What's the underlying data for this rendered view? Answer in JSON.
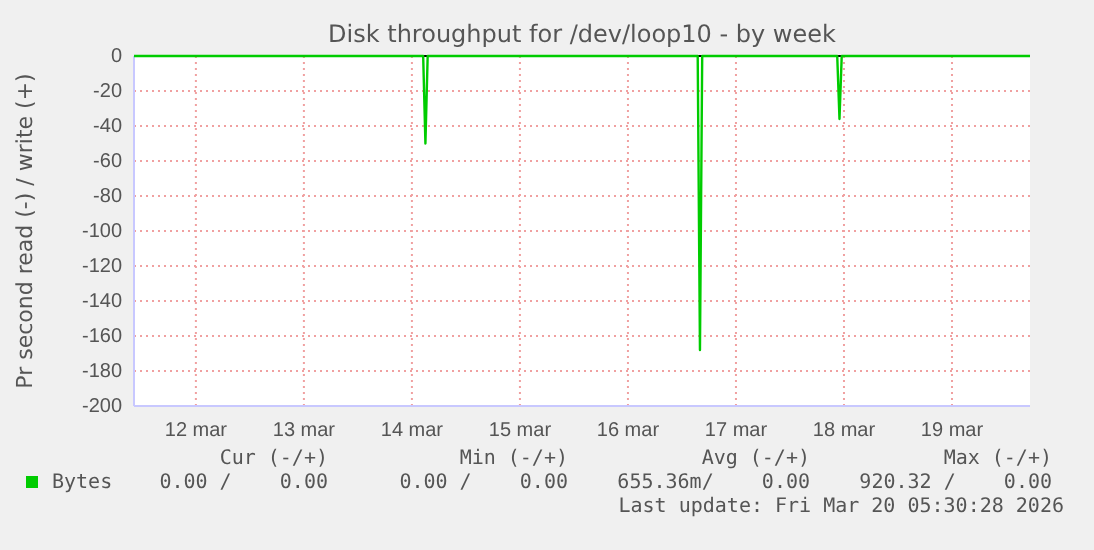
{
  "chart_data": {
    "type": "line",
    "title": "Disk throughput for /dev/loop10 - by week",
    "ylabel": "Pr second read (-) / write (+)",
    "x": [
      "2026-03-11T22:15",
      "2026-03-14T14:30",
      "2026-03-14T15:00",
      "2026-03-14T15:30",
      "2026-03-17T03:30",
      "2026-03-17T04:00",
      "2026-03-17T04:30",
      "2026-03-18T10:30",
      "2026-03-18T11:00",
      "2026-03-18T11:30",
      "2026-03-20T05:20"
    ],
    "series": [
      {
        "name": "Bytes",
        "color": "#00cc00",
        "values": [
          0,
          0,
          -50,
          0,
          0,
          -168,
          0,
          0,
          -36,
          0,
          0
        ]
      }
    ],
    "xlim": [
      "2026-03-11T22:15",
      "2026-03-20T05:20"
    ],
    "xticks": [
      {
        "value": "2026-03-12T12:00",
        "label": "12 mar"
      },
      {
        "value": "2026-03-13T12:00",
        "label": "13 mar"
      },
      {
        "value": "2026-03-14T12:00",
        "label": "14 mar"
      },
      {
        "value": "2026-03-15T12:00",
        "label": "15 mar"
      },
      {
        "value": "2026-03-16T12:00",
        "label": "16 mar"
      },
      {
        "value": "2026-03-17T12:00",
        "label": "17 mar"
      },
      {
        "value": "2026-03-18T12:00",
        "label": "18 mar"
      },
      {
        "value": "2026-03-19T12:00",
        "label": "19 mar"
      }
    ],
    "ylim": [
      -200,
      0
    ],
    "yticks": [
      -200,
      -180,
      -160,
      -140,
      -120,
      -100,
      -80,
      -60,
      -40,
      -20,
      0
    ],
    "grid": true,
    "legend": "bottom",
    "marker": "none",
    "line_style": "solid",
    "ref_lines": [
      {
        "axis": "y",
        "value": 0,
        "color": "#000000"
      }
    ],
    "annotations": [
      "Cur (-/+)",
      "Min (-/+)",
      "Avg (-/+)",
      "Max (-/+)",
      "0.00 /    0.00",
      "0.00 /    0.00",
      "655.36m/    0.00",
      "920.32 /    0.00",
      "Last update: Fri Mar 20 05:30:28 2026"
    ]
  }
}
